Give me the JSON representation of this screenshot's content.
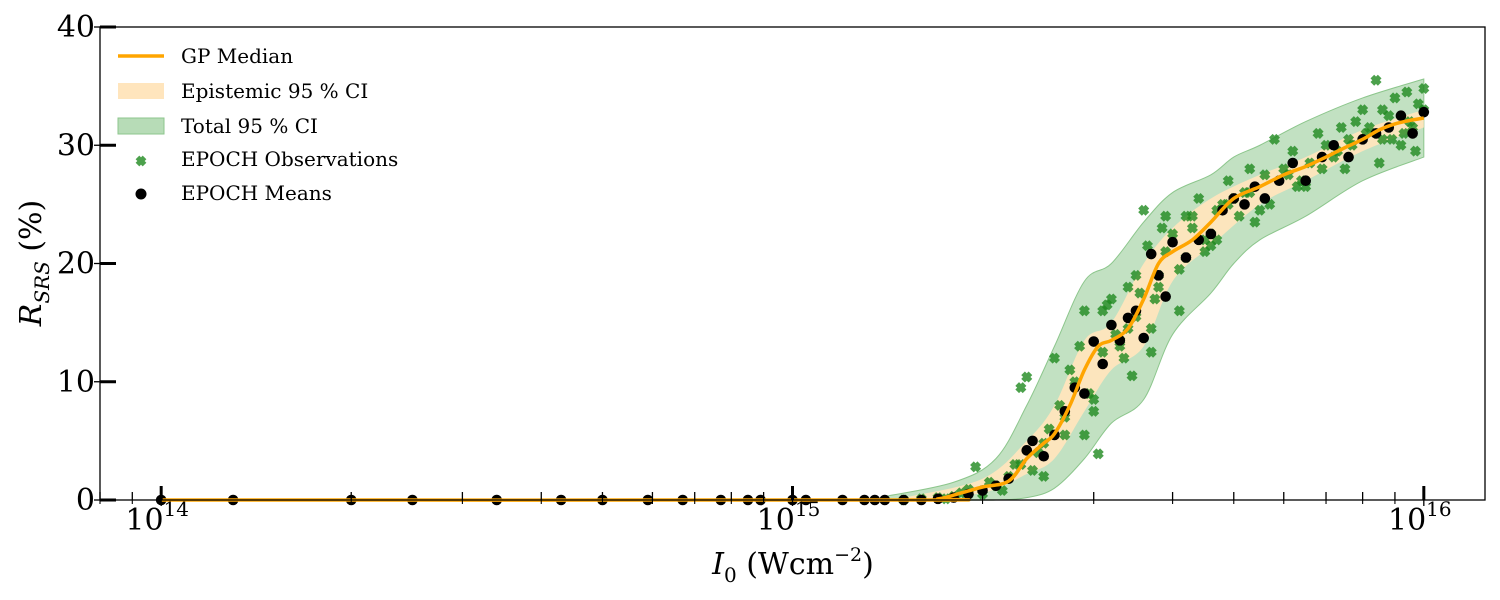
{
  "colors": {
    "median": "#ffa500",
    "epistemic_fill": "#ffe5bd",
    "total_fill": "#b7dcb7",
    "total_edge": "#8cc68c",
    "observations": "#1f8a1f",
    "means": "#000000",
    "axis": "#000000"
  },
  "chart_data": {
    "type": "line",
    "x_scale": "log",
    "xlim": [
      80000000000000.0,
      1.25e+16
    ],
    "ylim": [
      0,
      40
    ],
    "grid": false,
    "legend_position": "top-left",
    "xlabel": {
      "symbol": "I",
      "subscript": "0",
      "unit": "Wcm",
      "exponent": "−2"
    },
    "ylabel": {
      "symbol": "R",
      "subscript": "SRS",
      "unit": "(%)"
    },
    "x_ticks": [
      {
        "value": 100000000000000.0,
        "base": "10",
        "exp": "14"
      },
      {
        "value": 1000000000000000.0,
        "base": "10",
        "exp": "15"
      },
      {
        "value": 1e+16,
        "base": "10",
        "exp": "16"
      }
    ],
    "y_ticks": [
      {
        "value": 0,
        "label": "0"
      },
      {
        "value": 10,
        "label": "10"
      },
      {
        "value": 20,
        "label": "20"
      },
      {
        "value": 30,
        "label": "30"
      },
      {
        "value": 40,
        "label": "40"
      }
    ],
    "legend": [
      {
        "key": "median",
        "label": "GP Median"
      },
      {
        "key": "epistemic",
        "label": "Epistemic 95 % CI"
      },
      {
        "key": "total",
        "label": "Total 95 % CI"
      },
      {
        "key": "observations",
        "label": "EPOCH Observations"
      },
      {
        "key": "means",
        "label": "EPOCH Means"
      }
    ],
    "series": {
      "median": {
        "x": [
          100000000000000.0,
          1500000000000000.0,
          1700000000000000.0,
          1850000000000000.0,
          2000000000000000.0,
          2200000000000000.0,
          2350000000000000.0,
          2500000000000000.0,
          2600000000000000.0,
          2750000000000000.0,
          2900000000000000.0,
          3050000000000000.0,
          3200000000000000.0,
          3400000000000000.0,
          3600000000000000.0,
          3800000000000000.0,
          4000000000000000.0,
          4300000000000000.0,
          4600000000000000.0,
          5000000000000000.0,
          5500000000000000.0,
          6000000000000000.0,
          6500000000000000.0,
          7000000000000000.0,
          7500000000000000.0,
          8000000000000000.0,
          8500000000000000.0,
          9000000000000000.0,
          9500000000000000.0,
          1e+16
        ],
        "y": [
          0,
          0,
          0.1,
          0.6,
          1.1,
          1.6,
          3.5,
          4.8,
          5.6,
          8.0,
          11.0,
          13.0,
          13.5,
          14.5,
          17.0,
          20.0,
          21.0,
          22.0,
          23.5,
          25.5,
          26.5,
          27.5,
          28.2,
          29.0,
          29.8,
          30.5,
          31.3,
          31.8,
          32.1,
          32.3
        ]
      },
      "epistemic_band": {
        "x": [
          1500000000000000.0,
          2000000000000000.0,
          2350000000000000.0,
          2600000000000000.0,
          2900000000000000.0,
          3200000000000000.0,
          3600000000000000.0,
          4000000000000000.0,
          4600000000000000.0,
          5500000000000000.0,
          6500000000000000.0,
          8000000000000000.0,
          1e+16
        ],
        "lower": [
          0,
          0.6,
          2.2,
          3.5,
          7.5,
          11.0,
          13.0,
          18.5,
          21.5,
          25.0,
          27.0,
          29.5,
          31.5
        ],
        "upper": [
          0.2,
          1.8,
          5.0,
          8.0,
          13.5,
          15.0,
          20.0,
          23.0,
          25.5,
          27.5,
          29.0,
          31.3,
          33.0
        ]
      },
      "total_band": {
        "x": [
          1400000000000000.0,
          1800000000000000.0,
          2100000000000000.0,
          2350000000000000.0,
          2600000000000000.0,
          2900000000000000.0,
          3200000000000000.0,
          3600000000000000.0,
          4000000000000000.0,
          4600000000000000.0,
          5000000000000000.0,
          5500000000000000.0,
          6500000000000000.0,
          8000000000000000.0,
          1e+16
        ],
        "lower": [
          0,
          0,
          0,
          0.2,
          1.0,
          3.5,
          6.5,
          8.5,
          14.0,
          17.5,
          20.0,
          22.0,
          24.0,
          27.0,
          29.0
        ],
        "upper": [
          0.3,
          1.5,
          3.5,
          8.0,
          13.0,
          18.5,
          20.0,
          23.5,
          26.0,
          27.5,
          29.0,
          30.0,
          32.0,
          34.0,
          35.6
        ]
      },
      "means": {
        "x": [
          100000000000000.0,
          130000000000000.0,
          200000000000000.0,
          250000000000000.0,
          340000000000000.0,
          430000000000000.0,
          500000000000000.0,
          590000000000000.0,
          670000000000000.0,
          770000000000000.0,
          850000000000000.0,
          890000000000000.0,
          1000000000000000.0,
          1050000000000000.0,
          1200000000000000.0,
          1300000000000000.0,
          1350000000000000.0,
          1400000000000000.0,
          1500000000000000.0,
          1600000000000000.0,
          1700000000000000.0,
          1800000000000000.0,
          1900000000000000.0,
          2000000000000000.0,
          2100000000000000.0,
          2200000000000000.0,
          2350000000000000.0,
          2400000000000000.0,
          2500000000000000.0,
          2600000000000000.0,
          2700000000000000.0,
          2800000000000000.0,
          2900000000000000.0,
          3000000000000000.0,
          3100000000000000.0,
          3200000000000000.0,
          3300000000000000.0,
          3400000000000000.0,
          3500000000000000.0,
          3600000000000000.0,
          3700000000000000.0,
          3800000000000000.0,
          3900000000000000.0,
          4000000000000000.0,
          4200000000000000.0,
          4400000000000000.0,
          4600000000000000.0,
          4800000000000000.0,
          5000000000000000.0,
          5200000000000000.0,
          5400000000000000.0,
          5600000000000000.0,
          5900000000000000.0,
          6200000000000000.0,
          6500000000000000.0,
          6900000000000000.0,
          7200000000000000.0,
          7600000000000000.0,
          8000000000000000.0,
          8400000000000000.0,
          8800000000000000.0,
          9200000000000000.0,
          9600000000000000.0,
          1e+16
        ],
        "y": [
          0,
          0,
          0,
          0,
          0,
          0,
          0,
          0,
          0,
          0,
          0,
          0,
          0,
          0,
          0,
          0,
          0,
          0,
          0,
          0,
          0.1,
          0.2,
          0.5,
          0.8,
          1.2,
          1.8,
          4.2,
          5.0,
          3.7,
          5.5,
          7.5,
          9.5,
          9.0,
          13.4,
          11.5,
          14.8,
          13.5,
          15.4,
          16.0,
          13.7,
          20.8,
          19.0,
          17.2,
          21.8,
          20.5,
          22.0,
          22.5,
          24.5,
          25.5,
          25.0,
          26.5,
          25.5,
          27.0,
          28.5,
          27.0,
          29.0,
          30.0,
          29.0,
          30.5,
          31.0,
          31.5,
          32.5,
          31.0,
          32.8
        ]
      },
      "observations": {
        "x": [
          1500000000000000.0,
          1600000000000000.0,
          1700000000000000.0,
          1750000000000000.0,
          1800000000000000.0,
          1850000000000000.0,
          1900000000000000.0,
          1950000000000000.0,
          2000000000000000.0,
          2050000000000000.0,
          2100000000000000.0,
          2150000000000000.0,
          2200000000000000.0,
          2250000000000000.0,
          2300000000000000.0,
          2350000000000000.0,
          2400000000000000.0,
          2450000000000000.0,
          2500000000000000.0,
          2550000000000000.0,
          2600000000000000.0,
          2650000000000000.0,
          2700000000000000.0,
          2750000000000000.0,
          2800000000000000.0,
          2850000000000000.0,
          2900000000000000.0,
          2950000000000000.0,
          3000000000000000.0,
          3050000000000000.0,
          3100000000000000.0,
          3150000000000000.0,
          3200000000000000.0,
          3250000000000000.0,
          3300000000000000.0,
          3350000000000000.0,
          3400000000000000.0,
          3450000000000000.0,
          3500000000000000.0,
          3550000000000000.0,
          3600000000000000.0,
          3650000000000000.0,
          3700000000000000.0,
          3750000000000000.0,
          3800000000000000.0,
          3850000000000000.0,
          3900000000000000.0,
          4000000000000000.0,
          4100000000000000.0,
          4200000000000000.0,
          4300000000000000.0,
          4400000000000000.0,
          4500000000000000.0,
          4600000000000000.0,
          4700000000000000.0,
          4800000000000000.0,
          4900000000000000.0,
          5000000000000000.0,
          5200000000000000.0,
          5400000000000000.0,
          5600000000000000.0,
          5800000000000000.0,
          6000000000000000.0,
          6200000000000000.0,
          6400000000000000.0,
          6600000000000000.0,
          6800000000000000.0,
          7000000000000000.0,
          7200000000000000.0,
          7400000000000000.0,
          7600000000000000.0,
          7800000000000000.0,
          8000000000000000.0,
          8200000000000000.0,
          8400000000000000.0,
          8600000000000000.0,
          8800000000000000.0,
          9000000000000000.0,
          9200000000000000.0,
          9400000000000000.0,
          9600000000000000.0,
          9800000000000000.0,
          1e+16,
          2300000000000000.0,
          2500000000000000.0,
          2700000000000000.0,
          2900000000000000.0,
          3100000000000000.0,
          3300000000000000.0,
          3500000000000000.0,
          3700000000000000.0,
          3900000000000000.0,
          4100000000000000.0,
          4300000000000000.0,
          4500000000000000.0,
          4700000000000000.0,
          4900000000000000.0,
          5100000000000000.0,
          5300000000000000.0,
          5500000000000000.0,
          5700000000000000.0,
          6100000000000000.0,
          6500000000000000.0,
          6900000000000000.0,
          7300000000000000.0,
          7700000000000000.0,
          8100000000000000.0,
          8500000000000000.0,
          8900000000000000.0,
          9300000000000000.0,
          9700000000000000.0,
          1e+16,
          3000000000000000.0,
          3400000000000000.0,
          3800000000000000.0,
          4200000000000000.0,
          4600000000000000.0,
          5300000000000000.0,
          6300000000000000.0,
          7500000000000000.0,
          8600000000000000.0,
          9500000000000000.0
        ],
        "y": [
          0,
          0.1,
          0.2,
          0.1,
          0.3,
          0.6,
          0.9,
          2.8,
          0.5,
          1.5,
          1.2,
          0.8,
          2.0,
          3.0,
          9.5,
          10.4,
          2.5,
          4.0,
          4.8,
          6.0,
          12.0,
          8.0,
          5.5,
          11.0,
          10.0,
          13.0,
          16.0,
          9.0,
          8.5,
          3.9,
          12.5,
          16.5,
          17.0,
          14.0,
          13.0,
          12.0,
          18.0,
          10.5,
          15.5,
          17.5,
          24.5,
          21.5,
          12.5,
          17.0,
          19.0,
          23.0,
          21.0,
          22.5,
          16.0,
          20.5,
          24.0,
          25.5,
          22.0,
          21.5,
          24.5,
          25.0,
          27.0,
          25.5,
          26.0,
          23.5,
          27.5,
          30.5,
          28.0,
          29.5,
          27.0,
          28.5,
          31.0,
          30.0,
          29.0,
          31.5,
          30.5,
          32.0,
          33.0,
          31.5,
          35.5,
          33.0,
          32.5,
          34.0,
          30.0,
          34.5,
          31.5,
          33.5,
          34.8,
          3.0,
          2.0,
          7.0,
          5.5,
          16.0,
          13.5,
          19.0,
          14.5,
          24.0,
          19.5,
          23.0,
          21.0,
          22.0,
          25.0,
          24.0,
          26.0,
          24.5,
          25.0,
          27.5,
          26.5,
          28.0,
          29.5,
          30.0,
          31.0,
          28.5,
          30.5,
          31.0,
          29.5,
          33.0,
          7.5,
          14.5,
          18.0,
          24.0,
          22.5,
          28.0,
          26.5,
          28.0,
          30.5,
          32.0
        ]
      }
    }
  }
}
